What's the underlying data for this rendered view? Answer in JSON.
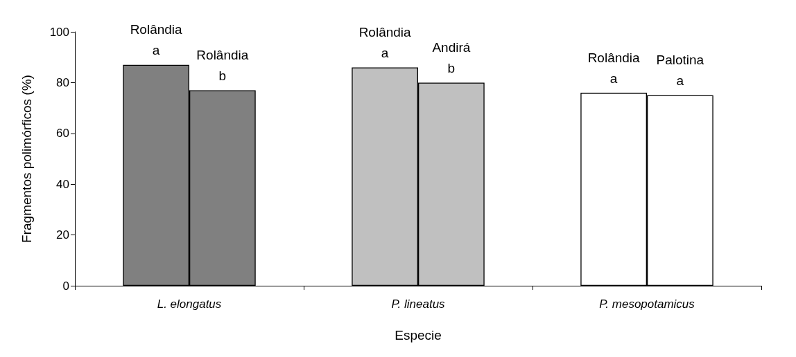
{
  "chart_data": {
    "type": "bar",
    "xlabel": "Especie",
    "ylabel": "Fragmentos polimórficos (%)",
    "categories": [
      "L. elongatus",
      "P. lineatus",
      "P. mesopotamicus"
    ],
    "series": [
      {
        "values": [
          87,
          86,
          76
        ],
        "colors": [
          "#808080",
          "#c0c0c0",
          "#ffffff"
        ],
        "value_labels": [
          "Rolândia\na",
          "Rolândia\na",
          "Rolândia\na"
        ]
      },
      {
        "values": [
          77,
          80,
          75
        ],
        "colors": [
          "#808080",
          "#c0c0c0",
          "#ffffff"
        ],
        "value_labels": [
          "Rolândia\nb",
          "Andirá\nb",
          "Palotina\na"
        ]
      }
    ],
    "ylim": [
      0,
      100
    ],
    "yticks": [
      0,
      20,
      40,
      60,
      80,
      100
    ],
    "grid": false
  }
}
